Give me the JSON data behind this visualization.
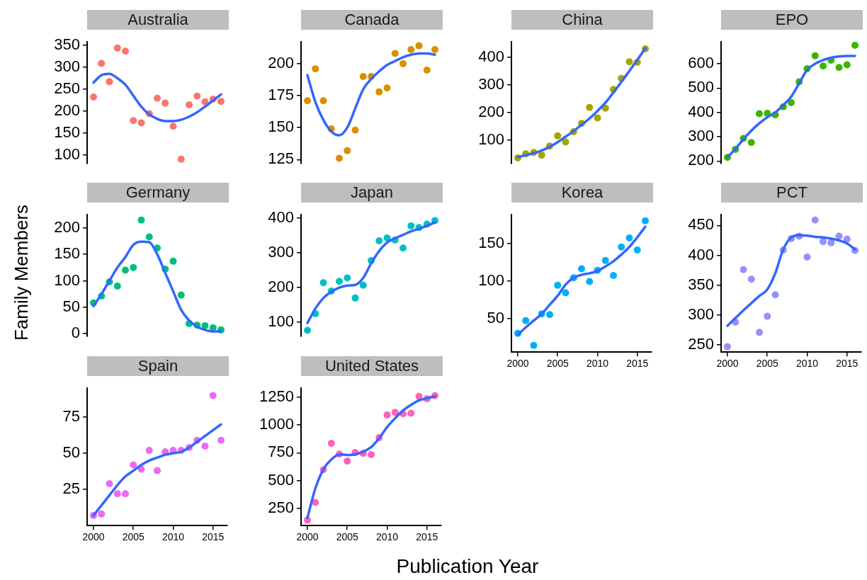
{
  "chart_data": [
    {
      "type": "scatter",
      "title": "Australia",
      "x": [
        2000,
        2001,
        2002,
        2003,
        2004,
        2005,
        2006,
        2007,
        2008,
        2009,
        2010,
        2011,
        2012,
        2013,
        2014,
        2015,
        2016
      ],
      "ylim": [
        80,
        358
      ],
      "yticks": [
        100,
        150,
        200,
        250,
        300,
        350
      ],
      "tick_labels": "y",
      "series": [
        {
          "color": "#f8766d",
          "marker": "circle",
          "values": [
            232,
            309,
            267,
            344,
            337,
            178,
            173,
            194,
            229,
            218,
            165,
            90,
            214,
            234,
            221,
            227,
            222
          ]
        },
        {
          "type": "line",
          "color": "#3366ff",
          "marker": "none",
          "line_style": "solid",
          "values": [
            265,
            282,
            285,
            275,
            260,
            235,
            210,
            192,
            182,
            177,
            177,
            180,
            187,
            197,
            210,
            224,
            238
          ]
        }
      ]
    },
    {
      "type": "scatter",
      "title": "Canada",
      "x": [
        2000,
        2001,
        2002,
        2003,
        2004,
        2005,
        2006,
        2007,
        2008,
        2009,
        2010,
        2011,
        2012,
        2013,
        2014,
        2015,
        2016
      ],
      "ylim": [
        122,
        217
      ],
      "yticks": [
        125,
        150,
        175,
        200
      ],
      "tick_labels": "y",
      "series": [
        {
          "color": "#d89000",
          "marker": "circle",
          "values": [
            171,
            196,
            171,
            149,
            126,
            132,
            148,
            190,
            190,
            178,
            181,
            208,
            200,
            211,
            214,
            195,
            211
          ]
        },
        {
          "type": "line",
          "color": "#3366ff",
          "marker": "none",
          "line_style": "solid",
          "values": [
            191,
            170,
            156,
            147,
            144,
            150,
            165,
            180,
            188,
            194,
            199,
            202,
            205,
            207,
            208,
            208,
            207
          ]
        }
      ]
    },
    {
      "type": "scatter",
      "title": "China",
      "x": [
        2000,
        2001,
        2002,
        2003,
        2004,
        2005,
        2006,
        2007,
        2008,
        2009,
        2010,
        2011,
        2012,
        2013,
        2014,
        2015,
        2016
      ],
      "ylim": [
        15,
        455
      ],
      "yticks": [
        100,
        200,
        300,
        400
      ],
      "tick_labels": "y",
      "series": [
        {
          "color": "#a3a500",
          "marker": "circle",
          "values": [
            35,
            50,
            55,
            45,
            78,
            115,
            93,
            130,
            160,
            218,
            180,
            215,
            283,
            323,
            383,
            381,
            430
          ]
        },
        {
          "type": "line",
          "color": "#3366ff",
          "marker": "none",
          "line_style": "solid",
          "values": [
            38,
            45,
            52,
            62,
            75,
            92,
            112,
            132,
            155,
            178,
            205,
            235,
            272,
            310,
            350,
            390,
            432
          ]
        }
      ]
    },
    {
      "type": "scatter",
      "title": "EPO",
      "x": [
        2000,
        2001,
        2002,
        2003,
        2004,
        2005,
        2006,
        2007,
        2008,
        2009,
        2010,
        2011,
        2012,
        2013,
        2014,
        2015,
        2016
      ],
      "ylim": [
        190,
        690
      ],
      "yticks": [
        200,
        300,
        400,
        500,
        600
      ],
      "tick_labels": "y",
      "series": [
        {
          "color": "#39b600",
          "marker": "circle",
          "values": [
            215,
            248,
            293,
            276,
            395,
            396,
            390,
            423,
            440,
            526,
            580,
            633,
            591,
            615,
            585,
            596,
            676
          ]
        },
        {
          "type": "line",
          "color": "#3366ff",
          "marker": "none",
          "line_style": "solid",
          "values": [
            215,
            250,
            290,
            325,
            355,
            380,
            400,
            430,
            465,
            520,
            575,
            600,
            615,
            625,
            630,
            632,
            632
          ]
        }
      ]
    },
    {
      "type": "scatter",
      "title": "Germany",
      "ylabel": "Family Members",
      "x": [
        2000,
        2001,
        2002,
        2003,
        2004,
        2005,
        2006,
        2007,
        2008,
        2009,
        2010,
        2011,
        2012,
        2013,
        2014,
        2015,
        2016
      ],
      "ylim": [
        -5,
        225
      ],
      "yticks": [
        0,
        50,
        100,
        150,
        200
      ],
      "tick_labels": "y",
      "series": [
        {
          "color": "#00bf7d",
          "marker": "circle",
          "values": [
            58,
            71,
            98,
            90,
            120,
            125,
            215,
            183,
            162,
            122,
            137,
            73,
            19,
            16,
            15,
            11,
            7
          ]
        },
        {
          "type": "line",
          "color": "#3366ff",
          "marker": "none",
          "line_style": "solid",
          "values": [
            52,
            75,
            100,
            125,
            145,
            168,
            174,
            173,
            150,
            115,
            80,
            45,
            25,
            13,
            7,
            4,
            4
          ]
        }
      ]
    },
    {
      "type": "scatter",
      "title": "Japan",
      "x": [
        2000,
        2001,
        2002,
        2003,
        2004,
        2005,
        2006,
        2007,
        2008,
        2009,
        2010,
        2011,
        2012,
        2013,
        2014,
        2015,
        2016
      ],
      "ylim": [
        60,
        410
      ],
      "yticks": [
        100,
        200,
        300,
        400
      ],
      "tick_labels": "y",
      "series": [
        {
          "color": "#00bfc4",
          "marker": "circle",
          "values": [
            77,
            125,
            214,
            190,
            218,
            228,
            170,
            207,
            278,
            335,
            343,
            337,
            314,
            378,
            373,
            383,
            393
          ]
        },
        {
          "type": "line",
          "color": "#3366ff",
          "marker": "none",
          "line_style": "solid",
          "values": [
            98,
            140,
            170,
            188,
            200,
            206,
            208,
            228,
            270,
            305,
            330,
            342,
            352,
            362,
            370,
            378,
            388
          ]
        }
      ]
    },
    {
      "type": "scatter",
      "title": "Korea",
      "x": [
        2000,
        2001,
        2002,
        2003,
        2004,
        2005,
        2006,
        2007,
        2008,
        2009,
        2010,
        2011,
        2012,
        2013,
        2014,
        2015,
        2016
      ],
      "xlim": [
        1999.2,
        2016.8
      ],
      "xticks": [
        2000,
        2005,
        2010,
        2015
      ],
      "ylim": [
        5,
        188
      ],
      "yticks": [
        50,
        100,
        150
      ],
      "series": [
        {
          "color": "#00b0f6",
          "marker": "circle",
          "values": [
            30,
            47,
            14,
            56,
            55,
            94,
            84,
            104,
            116,
            99,
            114,
            127,
            107,
            145,
            157,
            141,
            180
          ]
        },
        {
          "type": "line",
          "color": "#3366ff",
          "marker": "none",
          "line_style": "solid",
          "values": [
            28,
            38,
            47,
            56,
            68,
            80,
            95,
            104,
            108,
            110,
            113,
            119,
            126,
            135,
            145,
            158,
            172
          ]
        }
      ]
    },
    {
      "type": "scatter",
      "title": "PCT",
      "x": [
        2000,
        2001,
        2002,
        2003,
        2004,
        2005,
        2006,
        2007,
        2008,
        2009,
        2010,
        2011,
        2012,
        2013,
        2014,
        2015,
        2016
      ],
      "xlim": [
        1999.2,
        2016.8
      ],
      "xticks": [
        2000,
        2005,
        2010,
        2015
      ],
      "ylim": [
        238,
        468
      ],
      "yticks": [
        250,
        300,
        350,
        400,
        450
      ],
      "series": [
        {
          "color": "#9590ff",
          "marker": "circle",
          "values": [
            247,
            288,
            376,
            360,
            271,
            298,
            334,
            409,
            428,
            432,
            397,
            459,
            423,
            421,
            432,
            427,
            408
          ]
        },
        {
          "type": "line",
          "color": "#3366ff",
          "marker": "none",
          "line_style": "solid",
          "values": [
            282,
            295,
            308,
            320,
            332,
            343,
            370,
            410,
            430,
            434,
            433,
            431,
            430,
            428,
            425,
            420,
            410
          ]
        }
      ]
    },
    {
      "type": "scatter",
      "title": "Spain",
      "x": [
        2000,
        2001,
        2002,
        2003,
        2004,
        2005,
        2006,
        2007,
        2008,
        2009,
        2010,
        2011,
        2012,
        2013,
        2014,
        2015,
        2016
      ],
      "xlim": [
        1999.2,
        2016.8
      ],
      "xticks": [
        2000,
        2005,
        2010,
        2015
      ],
      "ylim": [
        0,
        95
      ],
      "yticks": [
        25,
        50,
        75
      ],
      "series": [
        {
          "color": "#e76bf3",
          "marker": "circle",
          "values": [
            7,
            8,
            29,
            22,
            22,
            42,
            39,
            52,
            38,
            51,
            52,
            52,
            54,
            59,
            55,
            90,
            59
          ]
        },
        {
          "type": "line",
          "color": "#3366ff",
          "marker": "none",
          "line_style": "solid",
          "values": [
            7,
            14,
            21,
            28,
            34,
            38,
            42,
            45,
            47,
            49,
            50,
            51,
            54,
            58,
            62,
            66,
            70
          ]
        }
      ]
    },
    {
      "type": "scatter",
      "title": "United States",
      "xlabel": "Publication Year",
      "x": [
        2000,
        2001,
        2002,
        2003,
        2004,
        2005,
        2006,
        2007,
        2008,
        2009,
        2010,
        2011,
        2012,
        2013,
        2014,
        2015,
        2016
      ],
      "xlim": [
        1999.2,
        2016.8
      ],
      "xticks": [
        2000,
        2005,
        2010,
        2015
      ],
      "ylim": [
        95,
        1330
      ],
      "yticks": [
        250,
        500,
        750,
        1000,
        1250
      ],
      "series": [
        {
          "color": "#ff62bc",
          "marker": "circle",
          "values": [
            145,
            303,
            598,
            835,
            738,
            675,
            752,
            745,
            733,
            885,
            1090,
            1113,
            1100,
            1105,
            1257,
            1235,
            1263
          ]
        },
        {
          "type": "line",
          "color": "#3366ff",
          "marker": "none",
          "line_style": "solid",
          "values": [
            165,
            430,
            600,
            690,
            735,
            730,
            735,
            760,
            800,
            880,
            980,
            1060,
            1130,
            1180,
            1220,
            1240,
            1258
          ]
        }
      ]
    }
  ]
}
